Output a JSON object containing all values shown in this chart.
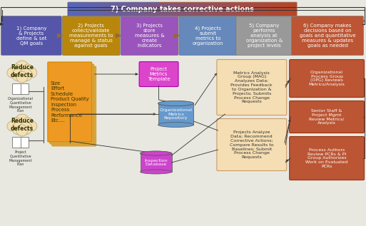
{
  "title": "7) Company takes corrective actions",
  "top_boxes": [
    {
      "label": "1) Company\n& Projects\ndefine & set\nQM goals",
      "color": "#5555aa",
      "text_color": "white"
    },
    {
      "label": "2) Projects\ncollect/validate\nmeasurements to\nmanage & status\nagainst goals",
      "color": "#b8860b",
      "text_color": "white"
    },
    {
      "label": "3) Projects\nstore\nmeasures &\ncreate\nindicators",
      "color": "#9955bb",
      "text_color": "white"
    },
    {
      "label": "4) Projects\nsubmit\nmetrics to\norganization",
      "color": "#6688bb",
      "text_color": "white"
    },
    {
      "label": "5) Company\nperforms\nanalysis at\norganization &\nproject levels",
      "color": "#999999",
      "text_color": "white"
    },
    {
      "label": "6) Company makes\ndecisions based on\ngoals and quantitative\nmeasures & updates\ngoals as needed",
      "color": "#bb5533",
      "text_color": "white"
    }
  ],
  "arrow_color": "#996633",
  "top_bar_color": "#5555aa",
  "top_bar_right_color": "#bb4422",
  "bg_color": "#e8e8e0",
  "cloud1_text": "Reduce\ndefects",
  "cloud2_text": "Reduce\ndefects",
  "org_plan_text": "Organizational\nQuantitative\nManagement\nPlan",
  "proj_plan_text": "Project\nQuantitative\nManagement\nPlan",
  "metrics_list": "Size\nEffort\nSchedule\nProduct Quality\nInspection\nProcess\nPerformance\nEtc....",
  "metrics_template_label": "Project\nMetrics\nTemplate",
  "org_metrics_label": "Organizational\nMetrics\nRepository",
  "inspection_db_label": "Inspection\nDatabase",
  "mag_box_label": "Metrics Analysis\nGroup (MAG)\nAnalyzes Data;\nProvides Feedback\nto Organization &\nProjects; Submits\nProcess Change\nRequests",
  "projects_box_label": "Projects Analyze\nData; Recommend\nCorrective Actions;\nCompare Results to\nBaselines; Submit\nProcess Change\nRequests",
  "opg_box_label": "Organizational\nProcess Group\n(OPG) Reviews\nMetrics/Analysis",
  "senior_box_label": "Senior Staff &\nProject Mgmt\nReview Metrics/\nAnalysis",
  "process_authors_label": "Process Authors\nReview PCRs & PI\nGroup Authorizes\nWork on Evaluated\nPCRs",
  "metrics_template_color": "#dd44cc",
  "metrics_stacked_color": "#ee9922",
  "metrics_stacked_bg": "#ddaa44",
  "org_metrics_color": "#6699cc",
  "inspection_db_color": "#cc44cc",
  "mag_box_color": "#f5deb3",
  "projects_box_color": "#f5deb3",
  "opg_box_color": "#bb5533",
  "senior_box_color": "#bb5533",
  "process_authors_color": "#bb5533",
  "cloud_color": "#f5deb3",
  "line_color": "#333333"
}
